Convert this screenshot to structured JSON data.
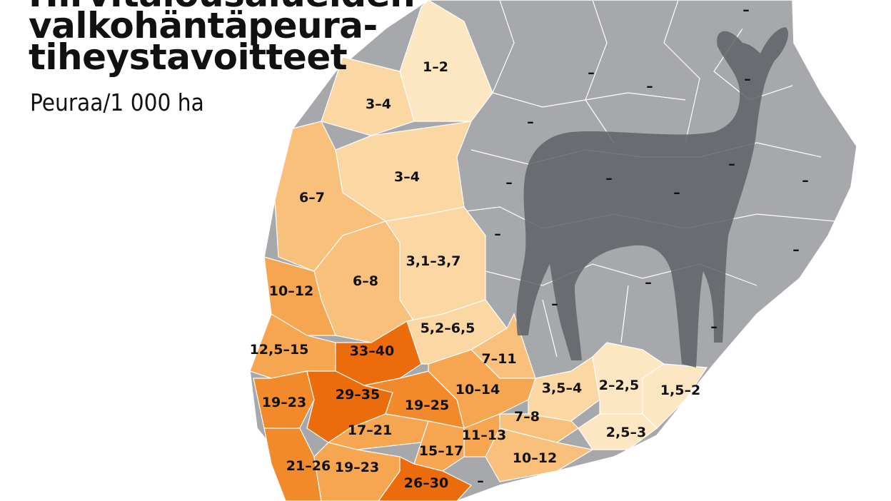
{
  "title_lines": [
    "Hirvitalousalueiden",
    "valkohäntäpeura-",
    "tiheystavoitteet"
  ],
  "subtitle": "Peuraa/1 000 ha",
  "colors": {
    "none": "#a6a8ab",
    "deer": "#5e6165",
    "lightest": "#fde6c2",
    "light": "#fbd7a3",
    "mid": "#f9c07c",
    "midhigh": "#f6a651",
    "high": "#f28a2b",
    "highest": "#ec6c0c"
  },
  "regions": [
    {
      "label": "1-2",
      "level": "lightest"
    },
    {
      "label": "3-4",
      "level": "light"
    },
    {
      "label": "3-4",
      "level": "light"
    },
    {
      "label": "6-7",
      "level": "mid"
    },
    {
      "label": "6-8",
      "level": "mid"
    },
    {
      "label": "3,1-3,7",
      "level": "light"
    },
    {
      "label": "10-12",
      "level": "midhigh"
    },
    {
      "label": "12,5-15",
      "level": "midhigh"
    },
    {
      "label": "33-40",
      "level": "highest"
    },
    {
      "label": "5,2-6,5",
      "level": "light"
    },
    {
      "label": "7-11",
      "level": "mid"
    },
    {
      "label": "19-23",
      "level": "high"
    },
    {
      "label": "29-35",
      "level": "highest"
    },
    {
      "label": "19-25",
      "level": "high"
    },
    {
      "label": "10-14",
      "level": "midhigh"
    },
    {
      "label": "3,5-4",
      "level": "light"
    },
    {
      "label": "2-2,5",
      "level": "lightest"
    },
    {
      "label": "1,5-2",
      "level": "lightest"
    },
    {
      "label": "2,5-3",
      "level": "lightest"
    },
    {
      "label": "7-8",
      "level": "mid"
    },
    {
      "label": "10-12",
      "level": "mid"
    },
    {
      "label": "11-13",
      "level": "midhigh"
    },
    {
      "label": "17-21",
      "level": "midhigh"
    },
    {
      "label": "15-17",
      "level": "midhigh"
    },
    {
      "label": "21-26",
      "level": "high"
    },
    {
      "label": "19-23",
      "level": "midhigh"
    },
    {
      "label": "26-30",
      "level": "highest"
    }
  ],
  "no_target_label": "–"
}
